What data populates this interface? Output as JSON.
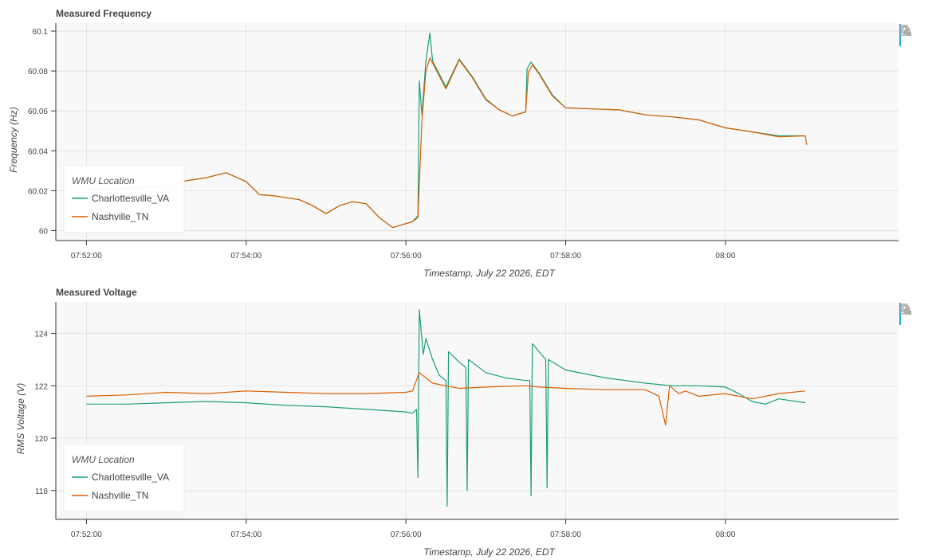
{
  "legend": {
    "title": "WMU Location",
    "series": [
      "Charlottesville_VA",
      "Nashville_TN"
    ]
  },
  "colors": {
    "Charlottesville_VA": "#1b9e77",
    "Nashville_TN": "#d95f02",
    "active_tool": "#26aae1"
  },
  "toolbar": {
    "tools": [
      "box-zoom-icon",
      "wheel-zoom-icon",
      "save-icon",
      "reset-icon"
    ]
  },
  "chart_data": [
    {
      "type": "line",
      "title": "Measured Frequency",
      "xlabel": "Timestamp, July 22 2026, EDT",
      "ylabel": "Frequency (Hz)",
      "xlim": [
        "07:51:37",
        "08:02:10"
      ],
      "ylim": [
        59.995,
        60.104
      ],
      "xticks": [
        "07:52:00",
        "07:54:00",
        "07:56:00",
        "07:58:00",
        "08:00"
      ],
      "yticks": [
        {
          "v": 60,
          "label": "60"
        },
        {
          "v": 60.02,
          "label": "60.02"
        },
        {
          "v": 60.04,
          "label": "60.04"
        },
        {
          "v": 60.06,
          "label": "60.06"
        },
        {
          "v": 60.08,
          "label": "60.08"
        },
        {
          "v": 60.1,
          "label": "60.1"
        }
      ],
      "grid": true,
      "legend_position": "bottom-left",
      "series": [
        {
          "name": "Charlottesville_VA",
          "points": [
            [
              "07:52:00",
              60.0205
            ],
            [
              "07:52:30",
              60.021
            ],
            [
              "07:53:00",
              60.0225
            ],
            [
              "07:53:15",
              60.025
            ],
            [
              "07:53:30",
              60.0265
            ],
            [
              "07:53:45",
              60.029
            ],
            [
              "07:54:00",
              60.0245
            ],
            [
              "07:54:10",
              60.018
            ],
            [
              "07:54:20",
              60.0175
            ],
            [
              "07:54:30",
              60.0165
            ],
            [
              "07:54:40",
              60.0155
            ],
            [
              "07:54:50",
              60.0125
            ],
            [
              "07:55:00",
              60.0085
            ],
            [
              "07:55:10",
              60.0125
            ],
            [
              "07:55:20",
              60.0145
            ],
            [
              "07:55:30",
              60.0135
            ],
            [
              "07:55:40",
              60.0065
            ],
            [
              "07:55:50",
              60.0015
            ],
            [
              "07:56:00",
              60.0035
            ],
            [
              "07:56:05",
              60.0045
            ],
            [
              "07:56:09",
              60.0075
            ],
            [
              "07:56:10",
              60.075
            ],
            [
              "07:56:12",
              60.058
            ],
            [
              "07:56:15",
              60.085
            ],
            [
              "07:56:18",
              60.099
            ],
            [
              "07:56:20",
              60.085
            ],
            [
              "07:56:30",
              60.072
            ],
            [
              "07:56:40",
              60.086
            ],
            [
              "07:56:50",
              60.077
            ],
            [
              "07:57:00",
              60.066
            ],
            [
              "07:57:10",
              60.0605
            ],
            [
              "07:57:20",
              60.0575
            ],
            [
              "07:57:30",
              60.0595
            ],
            [
              "07:57:31",
              60.081
            ],
            [
              "07:57:34",
              60.0845
            ],
            [
              "07:57:40",
              60.079
            ],
            [
              "07:57:50",
              60.068
            ],
            [
              "07:58:00",
              60.0615
            ],
            [
              "07:58:20",
              60.061
            ],
            [
              "07:58:40",
              60.0605
            ],
            [
              "07:59:00",
              60.058
            ],
            [
              "07:59:20",
              60.057
            ],
            [
              "07:59:40",
              60.0555
            ],
            [
              "08:00:00",
              60.0515
            ],
            [
              "08:00:20",
              60.0495
            ],
            [
              "08:00:40",
              60.0475
            ],
            [
              "08:01:00",
              60.0475
            ]
          ]
        },
        {
          "name": "Nashville_TN",
          "points": [
            [
              "07:52:00",
              60.0205
            ],
            [
              "07:52:30",
              60.021
            ],
            [
              "07:53:00",
              60.0225
            ],
            [
              "07:53:15",
              60.025
            ],
            [
              "07:53:30",
              60.0265
            ],
            [
              "07:53:45",
              60.029
            ],
            [
              "07:54:00",
              60.0245
            ],
            [
              "07:54:10",
              60.018
            ],
            [
              "07:54:20",
              60.0175
            ],
            [
              "07:54:30",
              60.0165
            ],
            [
              "07:54:40",
              60.0155
            ],
            [
              "07:54:50",
              60.0125
            ],
            [
              "07:55:00",
              60.0085
            ],
            [
              "07:55:10",
              60.0125
            ],
            [
              "07:55:20",
              60.0145
            ],
            [
              "07:55:30",
              60.0135
            ],
            [
              "07:55:40",
              60.0065
            ],
            [
              "07:55:50",
              60.0015
            ],
            [
              "07:56:00",
              60.0035
            ],
            [
              "07:56:05",
              60.0045
            ],
            [
              "07:56:09",
              60.0065
            ],
            [
              "07:56:12",
              60.055
            ],
            [
              "07:56:15",
              60.08
            ],
            [
              "07:56:18",
              60.0865
            ],
            [
              "07:56:20",
              60.084
            ],
            [
              "07:56:30",
              60.071
            ],
            [
              "07:56:40",
              60.0855
            ],
            [
              "07:56:50",
              60.0765
            ],
            [
              "07:57:00",
              60.0655
            ],
            [
              "07:57:10",
              60.0605
            ],
            [
              "07:57:20",
              60.0575
            ],
            [
              "07:57:30",
              60.0595
            ],
            [
              "07:57:32",
              60.0795
            ],
            [
              "07:57:35",
              60.083
            ],
            [
              "07:57:40",
              60.0785
            ],
            [
              "07:57:50",
              60.0675
            ],
            [
              "07:58:00",
              60.0615
            ],
            [
              "07:58:20",
              60.061
            ],
            [
              "07:58:40",
              60.0605
            ],
            [
              "07:59:00",
              60.058
            ],
            [
              "07:59:20",
              60.057
            ],
            [
              "07:59:40",
              60.0555
            ],
            [
              "08:00:00",
              60.0515
            ],
            [
              "08:00:20",
              60.0495
            ],
            [
              "08:00:40",
              60.047
            ],
            [
              "08:01:00",
              60.0475
            ],
            [
              "08:01:01",
              60.043
            ]
          ]
        }
      ]
    },
    {
      "type": "line",
      "title": "Measured Voltage",
      "xlabel": "Timestamp, July 22 2026, EDT",
      "ylabel": "RMS Voltage (V)",
      "xlim": [
        "07:51:37",
        "08:02:10"
      ],
      "ylim": [
        116.9,
        125.2
      ],
      "xticks": [
        "07:52:00",
        "07:54:00",
        "07:56:00",
        "07:58:00",
        "08:00"
      ],
      "yticks": [
        {
          "v": 118,
          "label": "118"
        },
        {
          "v": 120,
          "label": "120"
        },
        {
          "v": 122,
          "label": "122"
        },
        {
          "v": 124,
          "label": "124"
        }
      ],
      "grid": true,
      "legend_position": "bottom-left",
      "series": [
        {
          "name": "Charlottesville_VA",
          "points": [
            [
              "07:52:00",
              121.3
            ],
            [
              "07:52:30",
              121.3
            ],
            [
              "07:53:00",
              121.35
            ],
            [
              "07:53:30",
              121.4
            ],
            [
              "07:54:00",
              121.35
            ],
            [
              "07:54:30",
              121.25
            ],
            [
              "07:55:00",
              121.2
            ],
            [
              "07:55:30",
              121.1
            ],
            [
              "07:56:00",
              121.0
            ],
            [
              "07:56:05",
              120.95
            ],
            [
              "07:56:08",
              121.1
            ],
            [
              "07:56:09",
              118.5
            ],
            [
              "07:56:10",
              124.9
            ],
            [
              "07:56:13",
              123.2
            ],
            [
              "07:56:15",
              123.8
            ],
            [
              "07:56:20",
              123.0
            ],
            [
              "07:56:25",
              122.4
            ],
            [
              "07:56:30",
              122.2
            ],
            [
              "07:56:31",
              117.4
            ],
            [
              "07:56:32",
              123.3
            ],
            [
              "07:56:40",
              122.9
            ],
            [
              "07:56:45",
              122.7
            ],
            [
              "07:56:46",
              118.0
            ],
            [
              "07:56:47",
              123.0
            ],
            [
              "07:57:00",
              122.5
            ],
            [
              "07:57:15",
              122.3
            ],
            [
              "07:57:30",
              122.2
            ],
            [
              "07:57:33",
              122.2
            ],
            [
              "07:57:34",
              117.8
            ],
            [
              "07:57:35",
              123.6
            ],
            [
              "07:57:45",
              123.0
            ],
            [
              "07:57:46",
              118.1
            ],
            [
              "07:57:47",
              123.0
            ],
            [
              "07:58:00",
              122.6
            ],
            [
              "07:58:30",
              122.3
            ],
            [
              "07:59:00",
              122.1
            ],
            [
              "07:59:20",
              122.0
            ],
            [
              "07:59:40",
              122.0
            ],
            [
              "08:00:00",
              121.95
            ],
            [
              "08:00:10",
              121.7
            ],
            [
              "08:00:20",
              121.4
            ],
            [
              "08:00:30",
              121.3
            ],
            [
              "08:00:40",
              121.5
            ],
            [
              "08:01:00",
              121.35
            ]
          ]
        },
        {
          "name": "Nashville_TN",
          "points": [
            [
              "07:52:00",
              121.6
            ],
            [
              "07:52:30",
              121.65
            ],
            [
              "07:53:00",
              121.75
            ],
            [
              "07:53:30",
              121.7
            ],
            [
              "07:54:00",
              121.8
            ],
            [
              "07:54:30",
              121.75
            ],
            [
              "07:55:00",
              121.7
            ],
            [
              "07:55:30",
              121.7
            ],
            [
              "07:56:00",
              121.75
            ],
            [
              "07:56:05",
              121.8
            ],
            [
              "07:56:10",
              122.5
            ],
            [
              "07:56:20",
              122.1
            ],
            [
              "07:56:30",
              122.0
            ],
            [
              "07:56:40",
              121.9
            ],
            [
              "07:57:00",
              121.95
            ],
            [
              "07:57:30",
              122.0
            ],
            [
              "07:57:40",
              121.95
            ],
            [
              "07:58:00",
              121.9
            ],
            [
              "07:58:30",
              121.85
            ],
            [
              "07:59:00",
              121.85
            ],
            [
              "07:59:10",
              121.6
            ],
            [
              "07:59:15",
              120.5
            ],
            [
              "07:59:18",
              122.0
            ],
            [
              "07:59:25",
              121.7
            ],
            [
              "07:59:30",
              121.8
            ],
            [
              "07:59:40",
              121.6
            ],
            [
              "08:00:00",
              121.7
            ],
            [
              "08:00:20",
              121.5
            ],
            [
              "08:00:40",
              121.7
            ],
            [
              "08:01:00",
              121.8
            ]
          ]
        }
      ]
    }
  ]
}
